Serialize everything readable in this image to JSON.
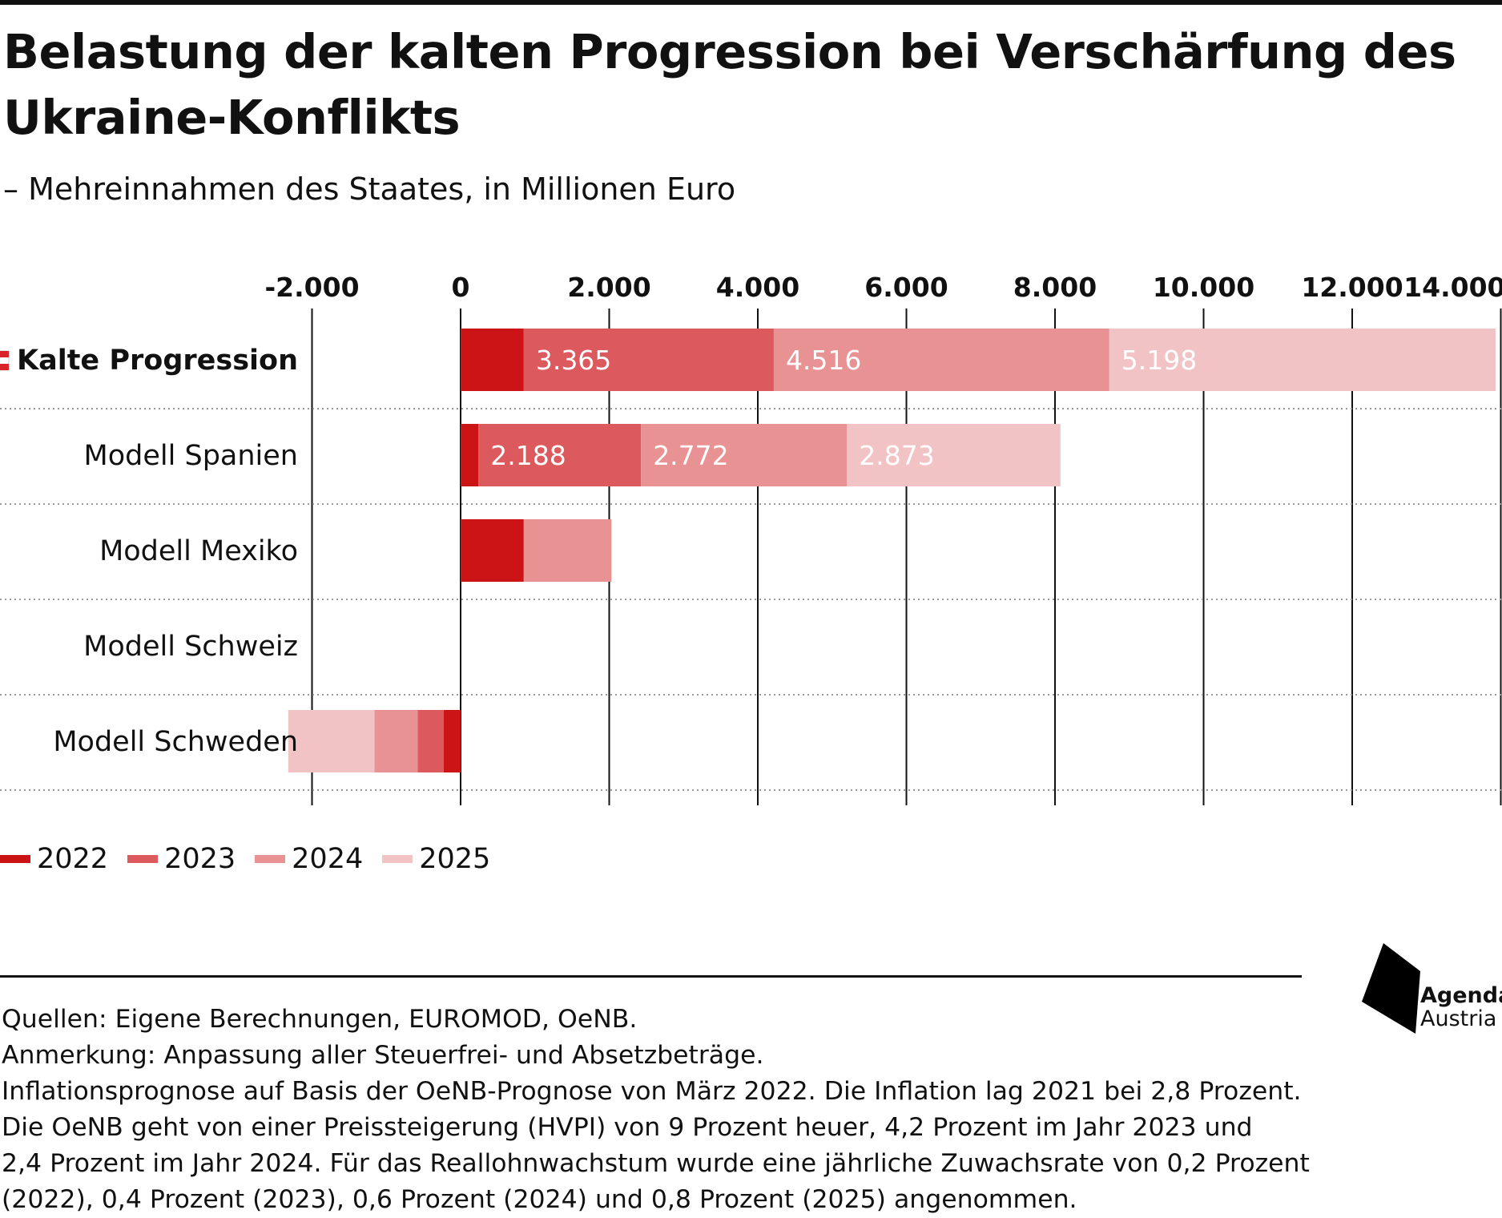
{
  "title": "Belastung der kalten Progression bei Verschärfung des Ukraine-Konflikts",
  "subtitle": "– Mehreinnahmen des Staates, in Millionen Euro",
  "chart_data": {
    "type": "bar",
    "orientation": "horizontal",
    "stacked": true,
    "xlim": [
      -2000,
      14000
    ],
    "x_ticks": [
      -2000,
      0,
      2000,
      4000,
      6000,
      8000,
      10000,
      12000,
      14000
    ],
    "x_tick_labels": [
      "-2.000",
      "0",
      "2.000",
      "4.000",
      "6.000",
      "8.000",
      "10.000",
      "12.000",
      "14.000"
    ],
    "categories": [
      "Kalte Progression",
      "Modell Spanien",
      "Modell Mexiko",
      "Modell Schweiz",
      "Modell Schweden"
    ],
    "highlight_category": "Kalte Progression",
    "series": [
      {
        "name": "2022",
        "color": "#cc1417",
        "values": [
          850,
          240,
          850,
          0,
          -230
        ]
      },
      {
        "name": "2023",
        "color": "#dc5a5e",
        "values": [
          3365,
          2188,
          0,
          0,
          -350
        ]
      },
      {
        "name": "2024",
        "color": "#e89294",
        "values": [
          4516,
          2772,
          1180,
          0,
          -580
        ]
      },
      {
        "name": "2025",
        "color": "#f2c3c5",
        "values": [
          5198,
          2873,
          0,
          0,
          -1160
        ]
      }
    ],
    "data_labels": [
      [
        null,
        "3.365",
        "4.516",
        "5.198"
      ],
      [
        null,
        "2.188",
        "2.772",
        "2.873"
      ],
      [
        null,
        null,
        null,
        null
      ],
      [
        null,
        null,
        null,
        null
      ],
      [
        null,
        null,
        null,
        null
      ]
    ],
    "grid": true,
    "legend_position": "bottom-left"
  },
  "legend": [
    {
      "label": "2022",
      "color": "#cc1417"
    },
    {
      "label": "2023",
      "color": "#dc5a5e"
    },
    {
      "label": "2024",
      "color": "#e89294"
    },
    {
      "label": "2025",
      "color": "#f2c3c5"
    }
  ],
  "notes": [
    "Quellen: Eigene Berechnungen, EUROMOD, OeNB.",
    "Anmerkung: Anpassung aller Steuerfrei- und Absetzbeträge.",
    "Inflationsprognose auf Basis der OeNB-Prognose von März 2022. Die Inflation lag 2021 bei 2,8 Prozent.",
    "Die OeNB geht von einer Preissteigerung (HVPI) von 9 Prozent heuer, 4,2 Prozent im Jahr 2023 und",
    "2,4 Prozent im Jahr 2024. Für das Reallohnwachstum wurde eine jährliche Zuwachsrate von 0,2 Prozent",
    "(2022), 0,4 Prozent (2023), 0,6 Prozent (2024) und 0,8 Prozent (2025) angenommen."
  ],
  "logo": {
    "line1": "Agenda",
    "line2": "Austria"
  },
  "flag_icon": "austria-flag-icon"
}
